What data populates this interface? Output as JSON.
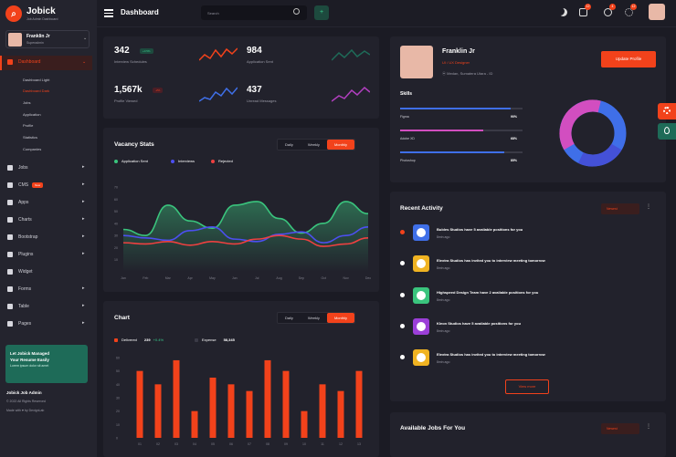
{
  "app": {
    "name": "Jobick",
    "subtitle": "Job Admin Dashboard",
    "page_title": "Dashboard"
  },
  "topbar": {
    "search_placeholder": "Search",
    "notification_counts": [
      "12",
      "4",
      "12"
    ]
  },
  "profile": {
    "name": "Franklin Jr",
    "role": "Superadmin"
  },
  "sidebar": {
    "dashboard": "Dashboard",
    "sub": [
      "Dashboard Light",
      "Dashboard Dark",
      "Jobs",
      "Application",
      "Profile",
      "Statistics",
      "Companies"
    ],
    "items": [
      "Jobs",
      "CMS",
      "Apps",
      "Charts",
      "Bootstrap",
      "Plugins",
      "Widget",
      "Forms",
      "Table",
      "Pages"
    ],
    "new_badge": "New",
    "promo": {
      "line1": "Let Jobick Managed",
      "line2": "Your Resume Easily",
      "line3": "Lorem ipsum dolor sit amet"
    },
    "footer": {
      "title": "Jobick Job Admin",
      "copy": "© 2022 All Rights Reserved",
      "made": "Made with ♥ by DexignLab"
    }
  },
  "stats": [
    {
      "value": "342",
      "label": "Interview Schedules",
      "pill": "+0.5%",
      "color": "#f2421b"
    },
    {
      "value": "984",
      "label": "Application Sent",
      "pill": "",
      "color": "#1e6b58"
    },
    {
      "value": "1,567k",
      "label": "Profile Viewed",
      "pill": "-2%",
      "color": "#3f6fe8"
    },
    {
      "value": "437",
      "label": "Unread Messages",
      "pill": "",
      "color": "#b23fc0"
    }
  ],
  "vacancy": {
    "title": "Vacancy Stats",
    "tabs": [
      "Daily",
      "Weekly",
      "Monthly"
    ],
    "legend": [
      "Application Sent",
      "Interviews",
      "Rejected"
    ],
    "chart_data": {
      "type": "line",
      "categories": [
        "Jan",
        "Feb",
        "Mar",
        "Apr",
        "May",
        "Jun",
        "Jul",
        "Aug",
        "Sep",
        "Oct",
        "Nov",
        "Dec"
      ],
      "ylim": [
        0,
        70
      ],
      "series": [
        {
          "name": "Application Sent",
          "color": "#3ac47d",
          "values": [
            35,
            30,
            55,
            42,
            36,
            55,
            58,
            44,
            32,
            40,
            58,
            48
          ]
        },
        {
          "name": "Interviews",
          "color": "#4c4ff0",
          "values": [
            30,
            28,
            26,
            34,
            37,
            27,
            25,
            31,
            33,
            24,
            30,
            37
          ]
        },
        {
          "name": "Rejected",
          "color": "#ee4040",
          "values": [
            24,
            23,
            25,
            22,
            25,
            23,
            27,
            30,
            27,
            21,
            23,
            28
          ]
        }
      ],
      "yticks": [
        "70",
        "60",
        "50",
        "40",
        "30",
        "20",
        "10"
      ],
      "xticks": [
        "Jan",
        "Feb",
        "Mar",
        "Apr",
        "May",
        "Jun",
        "Jul",
        "Aug",
        "Sep",
        "Oct",
        "Nov",
        "Dec"
      ]
    }
  },
  "chart": {
    "title": "Chart",
    "tabs": [
      "Daily",
      "Weekly",
      "Monthly"
    ],
    "delivered_label": "Delivered",
    "delivered_value": "239",
    "delivered_change": "+0.4%",
    "expense_label": "Expense",
    "expense_value": "58,345",
    "chart_data": {
      "type": "bar",
      "categories": [
        "01",
        "02",
        "03",
        "04",
        "05",
        "06",
        "07",
        "08",
        "09",
        "10",
        "11",
        "12",
        "13"
      ],
      "values": [
        50,
        40,
        58,
        20,
        45,
        40,
        35,
        58,
        50,
        20,
        40,
        35,
        50
      ],
      "ylim": [
        0,
        60
      ],
      "yticks": [
        "60",
        "50",
        "40",
        "30",
        "20",
        "10",
        "0"
      ]
    }
  },
  "profile_card": {
    "name": "Franklin Jr",
    "role": "UI / UX Designer",
    "location": "Medan, Sumatera Utara - ID",
    "button": "Update Profile",
    "skills_title": "Skills",
    "skills": [
      {
        "name": "Figma",
        "pct": "90%",
        "value": 90,
        "color": "#3f6fe8"
      },
      {
        "name": "Adobe XD",
        "pct": "68%",
        "value": 68,
        "color": "#d24ec0"
      },
      {
        "name": "Photoshop",
        "pct": "85%",
        "value": 85,
        "color": "#3f6fe8"
      }
    ]
  },
  "activity": {
    "title": "Recent Activity",
    "filter": "Newest",
    "view_more": "View more",
    "items": [
      {
        "text": "Bubles Studios have 5 available positions for you",
        "time": "8min ago",
        "color": "#3f6fe8",
        "dot": "#f2421b"
      },
      {
        "text": "Elextra Studios has invited you to interview meeting tomorrow",
        "time": "8min ago",
        "color": "#f0b322",
        "dot": "#ffffff"
      },
      {
        "text": "Highspeed Design Team have 2 available positions for you",
        "time": "8min ago",
        "color": "#3ac47d",
        "dot": "#ffffff"
      },
      {
        "text": "Kleon Studios have 5 available positions for you",
        "time": "8min ago",
        "color": "#9b3fd8",
        "dot": "#ffffff"
      },
      {
        "text": "Elextra Studios has invited you to interview meeting tomorrow",
        "time": "8min ago",
        "color": "#f0b322",
        "dot": "#ffffff"
      }
    ]
  },
  "jobs": {
    "title": "Available Jobs For You",
    "filter": "Newest"
  }
}
